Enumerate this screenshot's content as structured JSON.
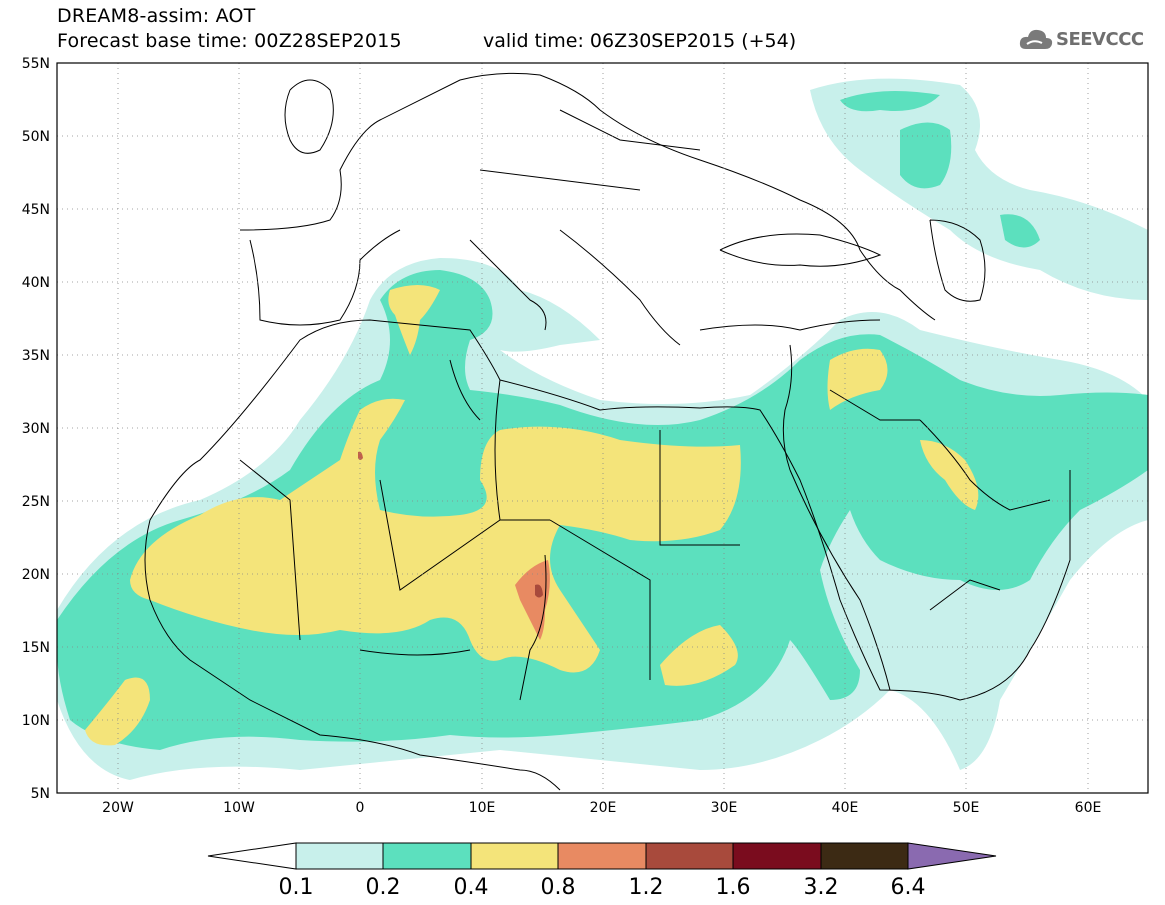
{
  "header": {
    "title_line1": "DREAM8-assim: AOT",
    "title_line2": "Forecast base time: 00Z28SEP2015",
    "valid_label": "valid time: 06Z30SEP2015 (+54)",
    "logo_text": "SEEVCCC",
    "logo_icon": "cloud-icon"
  },
  "map": {
    "lon_range": [
      -25,
      65
    ],
    "lat_range": [
      5,
      55
    ],
    "lat_ticks": [
      "5N",
      "10N",
      "15N",
      "20N",
      "25N",
      "30N",
      "35N",
      "40N",
      "45N",
      "50N",
      "55N"
    ],
    "lon_ticks": [
      "20W",
      "10W",
      "0",
      "10E",
      "20E",
      "30E",
      "40E",
      "50E",
      "60E"
    ],
    "grid": "dotted"
  },
  "colorbar": {
    "labels": [
      "0.1",
      "0.2",
      "0.4",
      "0.8",
      "1.2",
      "1.6",
      "3.2",
      "6.4"
    ],
    "colors": [
      "#c8f0eb",
      "#5ce0be",
      "#f4e47a",
      "#e88a62",
      "#a84a3c",
      "#7a0c1e",
      "#3c2a14"
    ],
    "under_color": "#ffffff",
    "over_color": "#8a6ab0"
  },
  "fields": {
    "c01": "#c8f0eb",
    "c02": "#5ce0be",
    "c04": "#f4e47a",
    "c08": "#e88a62",
    "c12": "#a84a3c"
  }
}
